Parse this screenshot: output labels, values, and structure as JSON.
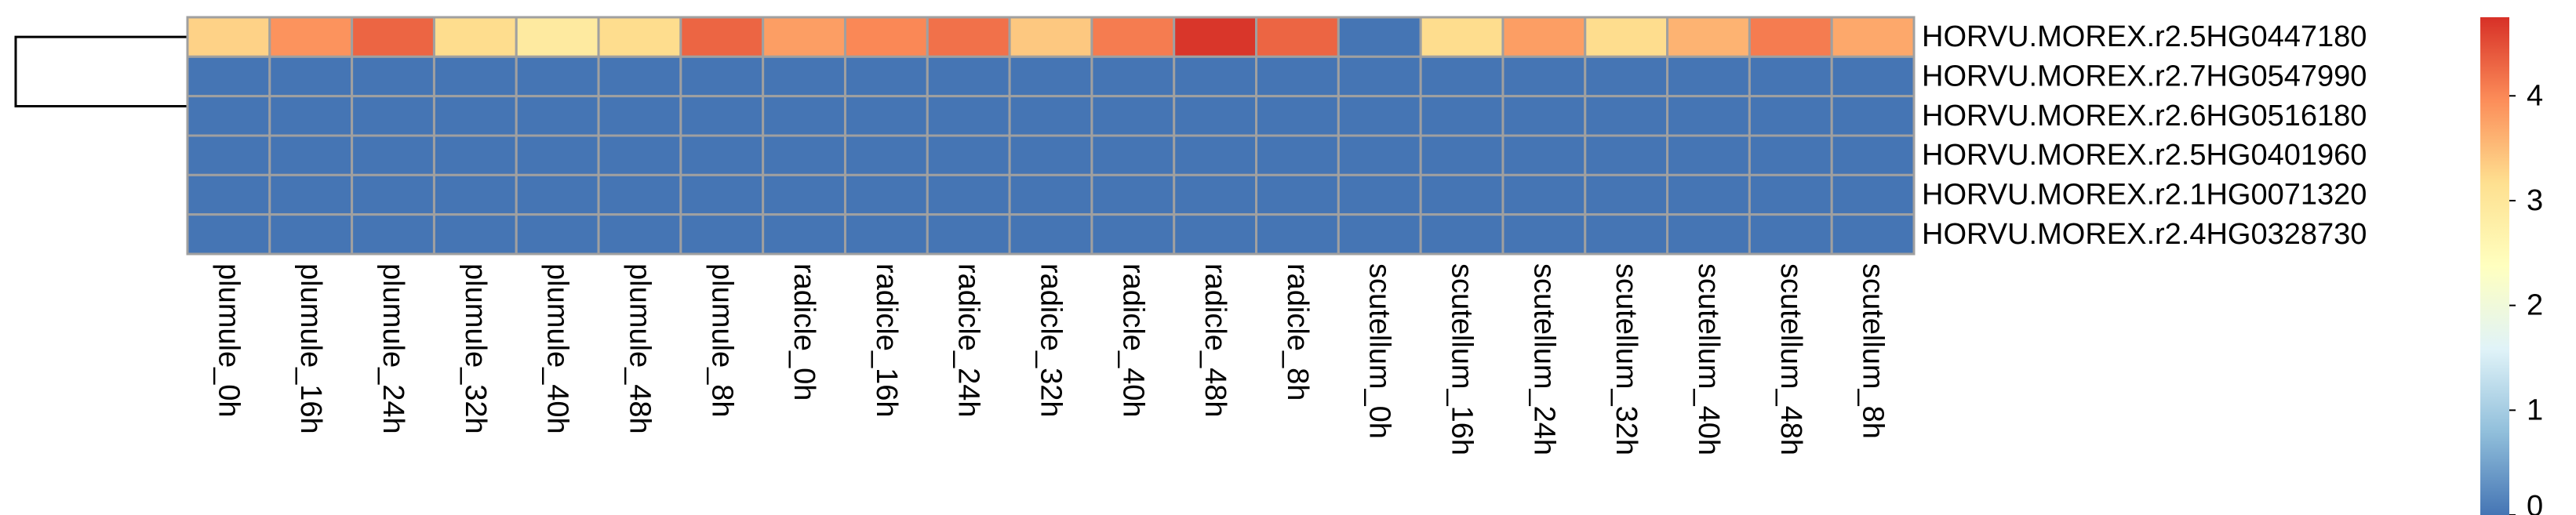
{
  "chart_data": {
    "type": "heatmap",
    "title": "",
    "xlabel": "",
    "ylabel": "",
    "columns": [
      "plumule_0h",
      "plumule_16h",
      "plumule_24h",
      "plumule_32h",
      "plumule_40h",
      "plumule_48h",
      "plumule_8h",
      "radicle_0h",
      "radicle_16h",
      "radicle_24h",
      "radicle_32h",
      "radicle_40h",
      "radicle_48h",
      "radicle_8h",
      "scutellum_0h",
      "scutellum_16h",
      "scutellum_24h",
      "scutellum_32h",
      "scutellum_40h",
      "scutellum_48h",
      "scutellum_8h"
    ],
    "rows": [
      "HORVU.MOREX.r2.5HG0447180",
      "HORVU.MOREX.r2.7HG0547990",
      "HORVU.MOREX.r2.6HG0516180",
      "HORVU.MOREX.r2.5HG0401960",
      "HORVU.MOREX.r2.1HG0071320",
      "HORVU.MOREX.r2.4HG0328730"
    ],
    "values": [
      [
        3.3,
        3.9,
        4.3,
        3.2,
        2.9,
        3.2,
        4.3,
        3.8,
        4.0,
        4.2,
        3.4,
        4.1,
        4.7,
        4.3,
        0.0,
        3.2,
        3.8,
        3.2,
        3.6,
        4.1,
        3.7
      ],
      [
        0,
        0,
        0,
        0,
        0,
        0,
        0,
        0,
        0,
        0,
        0,
        0,
        0,
        0,
        0,
        0,
        0,
        0,
        0,
        0,
        0
      ],
      [
        0,
        0,
        0,
        0,
        0,
        0,
        0,
        0,
        0,
        0,
        0,
        0,
        0,
        0,
        0,
        0,
        0,
        0,
        0,
        0,
        0
      ],
      [
        0,
        0,
        0,
        0,
        0,
        0,
        0,
        0,
        0,
        0,
        0,
        0,
        0,
        0,
        0,
        0,
        0,
        0,
        0,
        0,
        0
      ],
      [
        0,
        0,
        0,
        0,
        0,
        0,
        0,
        0,
        0,
        0,
        0,
        0,
        0,
        0,
        0,
        0,
        0,
        0,
        0,
        0,
        0
      ],
      [
        0,
        0,
        0,
        0,
        0,
        0,
        0,
        0,
        0,
        0,
        0,
        0,
        0,
        0,
        0,
        0,
        0,
        0,
        0,
        0,
        0
      ]
    ],
    "color_scale": {
      "min": 0,
      "max": 4.75,
      "ticks": [
        0,
        1,
        2,
        3,
        4
      ],
      "colors": [
        "#4575b4",
        "#91bfdb",
        "#e0f3f8",
        "#ffffbf",
        "#fee090",
        "#fc8d59",
        "#d73027"
      ]
    },
    "row_dendrogram": true,
    "cell_border_color": "#a0a0a0"
  }
}
